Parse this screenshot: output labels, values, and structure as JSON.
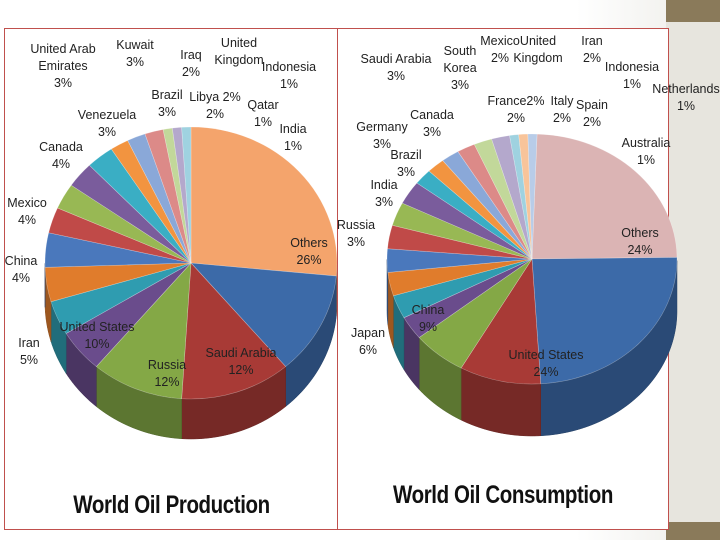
{
  "chart_data": [
    {
      "type": "pie",
      "title": "World Oil Production",
      "slices": [
        {
          "label": "Others",
          "value": 26,
          "display": "26%",
          "color": "#f4a46c"
        },
        {
          "label": "Saudi Arabia",
          "value": 12,
          "display": "12%",
          "color": "#3c6aa8"
        },
        {
          "label": "Russia",
          "value": 12,
          "display": "12%",
          "color": "#a83a36"
        },
        {
          "label": "United States",
          "value": 10,
          "display": "10%",
          "color": "#84a846"
        },
        {
          "label": "Iran",
          "value": 5,
          "display": "5%",
          "color": "#6a4c8c"
        },
        {
          "label": "China",
          "value": 4,
          "display": "4%",
          "color": "#2f9cb0"
        },
        {
          "label": "Mexico",
          "value": 4,
          "display": "4%",
          "color": "#e07c2c"
        },
        {
          "label": "Canada",
          "value": 4,
          "display": "4%",
          "color": "#4a78bc"
        },
        {
          "label": "Venezuela",
          "value": 3,
          "display": "3%",
          "color": "#c04a48"
        },
        {
          "label": "United Arab Emirates",
          "value": 3,
          "display": "3%",
          "color": "#98b854"
        },
        {
          "label": "Kuwait",
          "value": 3,
          "display": "3%",
          "color": "#7a5c9c"
        },
        {
          "label": "Brazil",
          "value": 3,
          "display": "3%",
          "color": "#3aaec4"
        },
        {
          "label": "Iraq",
          "value": 2,
          "display": "2%",
          "color": "#f29440"
        },
        {
          "label": "United Kingdom",
          "value": 2,
          "display": "2%",
          "color": "#8aa8d8"
        },
        {
          "label": "Libya",
          "value": 2,
          "display": "2%",
          "color": "#dc8a88"
        },
        {
          "label": "Qatar",
          "value": 1,
          "display": "1%",
          "color": "#c2d89a"
        },
        {
          "label": "Indonesia",
          "value": 1,
          "display": "1%",
          "color": "#b4a8cc"
        },
        {
          "label": "India",
          "value": 1,
          "display": "1%",
          "color": "#9fd2e0"
        }
      ]
    },
    {
      "type": "pie",
      "title": "World Oil Consumption",
      "slices": [
        {
          "label": "Others",
          "value": 24,
          "display": "24%",
          "color": "#dbb4b4"
        },
        {
          "label": "United States",
          "value": 24,
          "display": "24%",
          "color": "#3c6aa8"
        },
        {
          "label": "China",
          "value": 9,
          "display": "9%",
          "color": "#a83a36"
        },
        {
          "label": "Japan",
          "value": 6,
          "display": "6%",
          "color": "#84a846"
        },
        {
          "label": "Russia",
          "value": 3,
          "display": "3%",
          "color": "#6a4c8c"
        },
        {
          "label": "India",
          "value": 3,
          "display": "3%",
          "color": "#2f9cb0"
        },
        {
          "label": "Brazil",
          "value": 3,
          "display": "3%",
          "color": "#e07c2c"
        },
        {
          "label": "Germany",
          "value": 3,
          "display": "3%",
          "color": "#4a78bc"
        },
        {
          "label": "Canada",
          "value": 3,
          "display": "3%",
          "color": "#c04a48"
        },
        {
          "label": "Saudi Arabia",
          "value": 3,
          "display": "3%",
          "color": "#98b854"
        },
        {
          "label": "South Korea",
          "value": 3,
          "display": "3%",
          "color": "#7a5c9c"
        },
        {
          "label": "Mexico",
          "value": 2,
          "display": "2%",
          "color": "#3aaec4"
        },
        {
          "label": "France",
          "value": 2,
          "display": "2%",
          "color": "#f29440"
        },
        {
          "label": "United Kingdom",
          "value": 2,
          "display": "2%",
          "color": "#8aa8d8"
        },
        {
          "label": "Italy",
          "value": 2,
          "display": "2%",
          "color": "#dc8a88"
        },
        {
          "label": "Iran",
          "value": 2,
          "display": "2%",
          "color": "#c2d89a"
        },
        {
          "label": "Spain",
          "value": 2,
          "display": "2%",
          "color": "#b4a8cc"
        },
        {
          "label": "Indonesia",
          "value": 1,
          "display": "1%",
          "color": "#9fd2e0"
        },
        {
          "label": "Netherlands",
          "value": 1,
          "display": "1%",
          "color": "#f8c49a"
        },
        {
          "label": "Australia",
          "value": 1,
          "display": "1%",
          "color": "#b8cce8"
        }
      ]
    }
  ]
}
